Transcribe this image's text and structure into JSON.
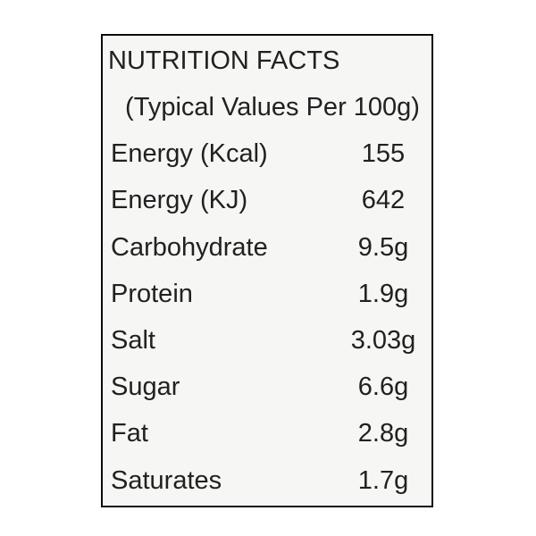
{
  "label": {
    "title": "NUTRITION FACTS",
    "subtitle": "(Typical Values Per 100g)",
    "rows": [
      {
        "name": "Energy (Kcal)",
        "value": "155"
      },
      {
        "name": "Energy (KJ)",
        "value": "642"
      },
      {
        "name": "Carbohydrate",
        "value": "9.5g"
      },
      {
        "name": "Protein",
        "value": "1.9g"
      },
      {
        "name": "Salt",
        "value": "3.03g"
      },
      {
        "name": "Sugar",
        "value": "6.6g"
      },
      {
        "name": "Fat",
        "value": "2.8g"
      },
      {
        "name": "Saturates",
        "value": "1.7g"
      }
    ],
    "colors": {
      "border": "#0b0b0b",
      "box_background": "#f6f6f5",
      "page_background": "#ffffff",
      "text": "#212121"
    }
  }
}
